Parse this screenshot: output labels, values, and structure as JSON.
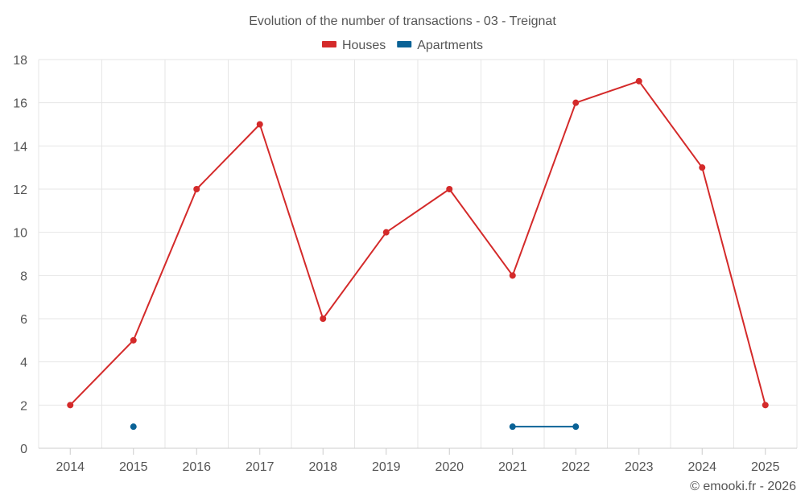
{
  "chart_data": {
    "type": "line",
    "title": "Evolution of the number of transactions - 03 - Treignat",
    "x": [
      "2014",
      "2015",
      "2016",
      "2017",
      "2018",
      "2019",
      "2020",
      "2021",
      "2022",
      "2023",
      "2024",
      "2025"
    ],
    "ylim": [
      0,
      18
    ],
    "yticks": [
      0,
      2,
      4,
      6,
      8,
      10,
      12,
      14,
      16,
      18
    ],
    "grid": true,
    "legend_position": "top-center",
    "series": [
      {
        "name": "Houses",
        "color": "#d42a2a",
        "values": [
          2,
          5,
          12,
          15,
          6,
          10,
          12,
          8,
          16,
          17,
          13,
          2
        ]
      },
      {
        "name": "Apartments",
        "color": "#0a6296",
        "values": [
          null,
          1,
          null,
          null,
          null,
          null,
          null,
          1,
          1,
          null,
          null,
          null
        ]
      }
    ],
    "credit": "© emooki.fr - 2026"
  }
}
